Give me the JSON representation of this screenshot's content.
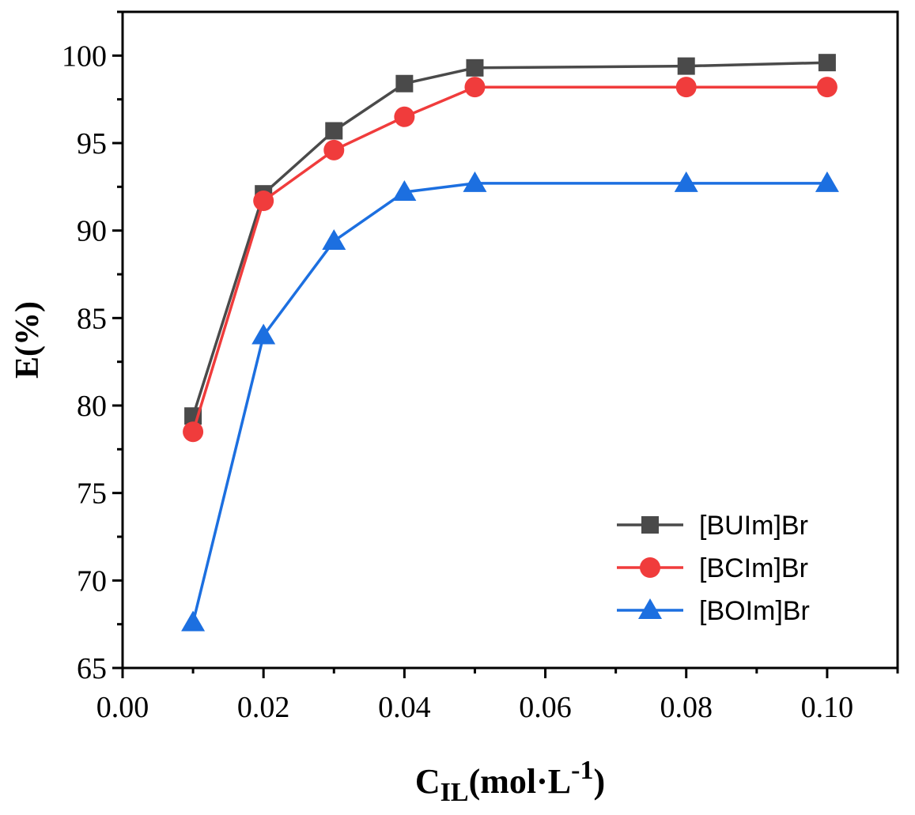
{
  "chart_data": {
    "type": "line",
    "title": "",
    "xlabel": "C",
    "xlabel_sub": "IL",
    "xlabel_rest": "(mol·L",
    "xlabel_sup": "-1",
    "xlabel_close": ")",
    "ylabel": "E(%)",
    "xlim": [
      0.0,
      0.11
    ],
    "ylim": [
      65,
      102.5
    ],
    "xticks": [
      "0.00",
      "0.02",
      "0.04",
      "0.06",
      "0.08",
      "0.10"
    ],
    "yticks": [
      "65",
      "70",
      "75",
      "80",
      "85",
      "90",
      "95",
      "100"
    ],
    "legend_position": "bottom-right",
    "x": [
      0.01,
      0.02,
      0.03,
      0.04,
      0.05,
      0.08,
      0.1
    ],
    "series": [
      {
        "name": "[BUIm]Br",
        "color": "#4a4a4a",
        "marker": "square",
        "values": [
          79.4,
          92.1,
          95.7,
          98.4,
          99.3,
          99.4,
          99.6
        ]
      },
      {
        "name": "[BCIm]Br",
        "color": "#f03c3c",
        "marker": "circle",
        "values": [
          78.5,
          91.7,
          94.6,
          96.5,
          98.2,
          98.2,
          98.2
        ]
      },
      {
        "name": "[BOIm]Br",
        "color": "#1c6fe0",
        "marker": "triangle",
        "values": [
          67.6,
          84.0,
          89.4,
          92.2,
          92.7,
          92.7,
          92.7
        ]
      }
    ]
  }
}
